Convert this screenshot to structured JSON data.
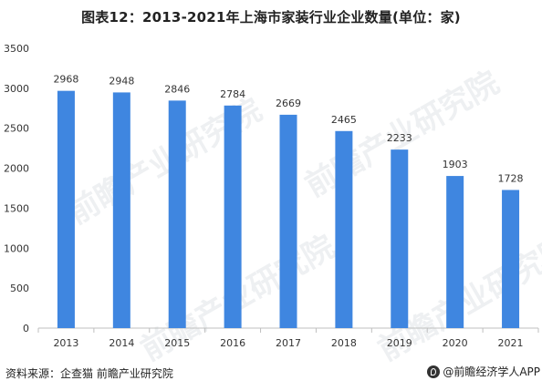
{
  "title": "图表12：2013-2021年上海市家装行业企业数量(单位：家)",
  "footer": {
    "source": "资料来源：企查猫 前瞻产业研究院",
    "brand": "@前瞻经济学人APP"
  },
  "watermark": "前瞻产业研究院",
  "colors": {
    "bar": "#3F86E0",
    "axis": "#bfbfbf",
    "text": "#333333"
  },
  "chart_data": {
    "type": "bar",
    "title": "图表12：2013-2021年上海市家装行业企业数量(单位：家)",
    "xlabel": "",
    "ylabel": "",
    "categories": [
      "2013",
      "2014",
      "2015",
      "2016",
      "2017",
      "2018",
      "2019",
      "2020",
      "2021"
    ],
    "values": [
      2968,
      2948,
      2846,
      2784,
      2669,
      2465,
      2233,
      1903,
      1728
    ],
    "yticks": [
      0,
      500,
      1000,
      1500,
      2000,
      2500,
      3000,
      3500
    ],
    "ylim": [
      0,
      3500
    ],
    "grid": false,
    "data_labels": true
  }
}
